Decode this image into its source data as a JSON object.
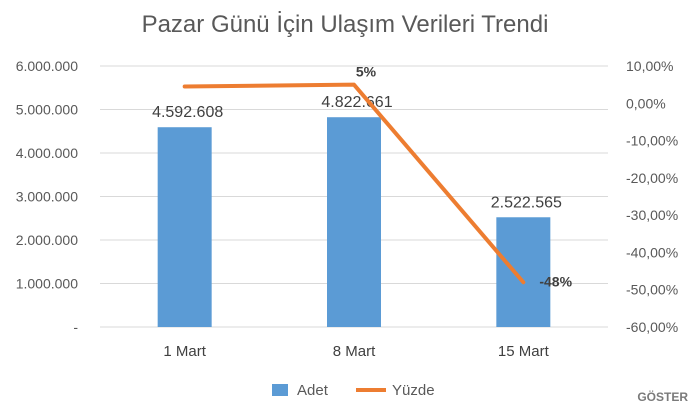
{
  "chart_data": {
    "type": "bar",
    "title": "Pazar Günü İçin Ulaşım Verileri Trendi",
    "categories": [
      "1 Mart",
      "8 Mart",
      "15 Mart"
    ],
    "series": [
      {
        "name": "Adet",
        "type": "bar",
        "axis": "left",
        "color": "#5B9BD5",
        "values": [
          4592608,
          4822661,
          2522565
        ],
        "labels": [
          "4.592.608",
          "4.822.661",
          "2.522.565"
        ]
      },
      {
        "name": "Yüzde",
        "type": "line",
        "axis": "right",
        "color": "#ED7D31",
        "values": [
          4.5,
          5,
          -48
        ],
        "labels": [
          "",
          "5%",
          "-48%"
        ]
      }
    ],
    "y_left": {
      "range": [
        0,
        6000000
      ],
      "ticks": [
        {
          "value": 6000000,
          "label": "6.000.000"
        },
        {
          "value": 5000000,
          "label": "5.000.000"
        },
        {
          "value": 4000000,
          "label": "4.000.000"
        },
        {
          "value": 3000000,
          "label": "3.000.000"
        },
        {
          "value": 2000000,
          "label": "2.000.000"
        },
        {
          "value": 1000000,
          "label": "1.000.000"
        },
        {
          "value": 0,
          "label": "-"
        }
      ]
    },
    "y_right": {
      "range": [
        -60,
        10
      ],
      "unit": "%",
      "ticks": [
        {
          "value": 10,
          "label": "10,00%"
        },
        {
          "value": 0,
          "label": "0,00%"
        },
        {
          "value": -10,
          "label": "-10,00%"
        },
        {
          "value": -20,
          "label": "-20,00%"
        },
        {
          "value": -30,
          "label": "-30,00%"
        },
        {
          "value": -40,
          "label": "-40,00%"
        },
        {
          "value": -50,
          "label": "-50,00%"
        },
        {
          "value": -60,
          "label": "-60,00%"
        }
      ]
    },
    "grid": true,
    "legend_position": "bottom",
    "watermark": "GÖSTER"
  }
}
